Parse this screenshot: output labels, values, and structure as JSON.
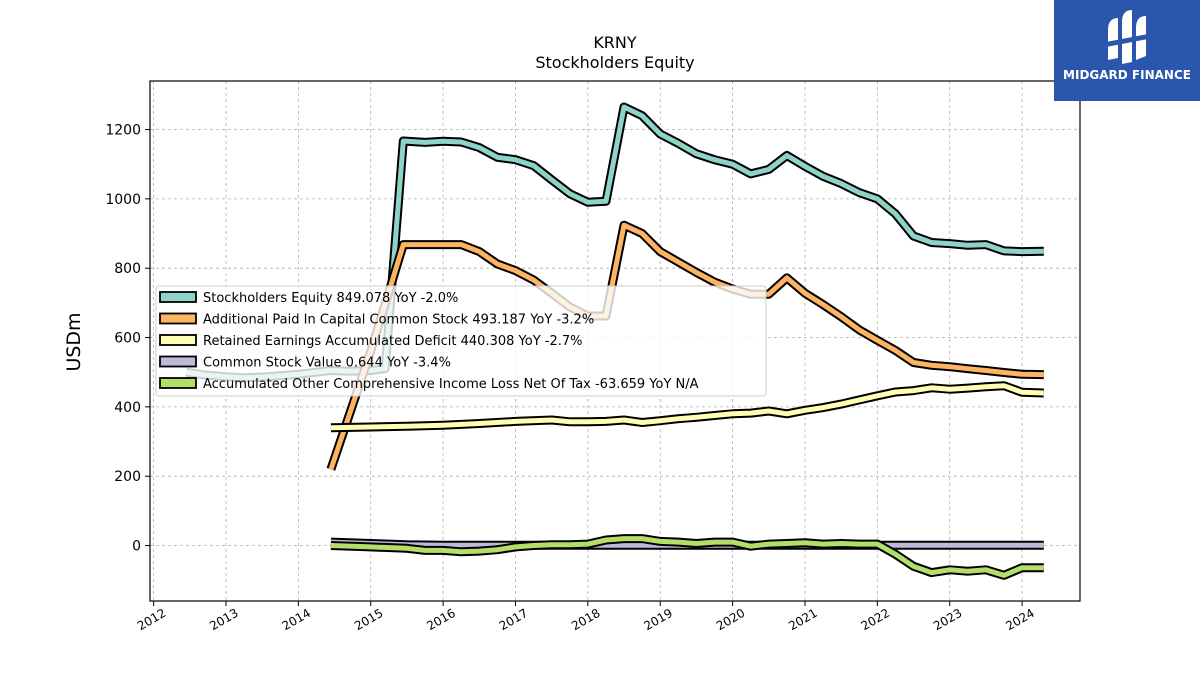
{
  "brand": {
    "name": "MIDGARD FINANCE",
    "bg": "#2a56ad"
  },
  "chart_data": {
    "type": "line",
    "title": "KRNY",
    "subtitle": "Stockholders  Equity",
    "ylabel": "USDm",
    "xlabel": "",
    "ylim": [
      -160,
      1340
    ],
    "xlim": [
      2011.95,
      2024.8
    ],
    "yticks": [
      0,
      200,
      400,
      600,
      800,
      1000,
      1200
    ],
    "xticks": [
      2012,
      2013,
      2014,
      2015,
      2016,
      2017,
      2018,
      2019,
      2020,
      2021,
      2022,
      2023,
      2024
    ],
    "grid": true,
    "legend_position": "center-left",
    "series": [
      {
        "name": "Stockholders Equity",
        "legend": "Stockholders Equity  849.078 YoY -2.0%",
        "color": "#8dd3c7",
        "points": [
          [
            2012.45,
            500
          ],
          [
            2012.7,
            492
          ],
          [
            2013.0,
            487
          ],
          [
            2013.25,
            484
          ],
          [
            2013.5,
            486
          ],
          [
            2013.75,
            490
          ],
          [
            2014.0,
            494
          ],
          [
            2014.25,
            500
          ],
          [
            2014.45,
            505
          ],
          [
            2014.7,
            503
          ],
          [
            2015.0,
            505
          ],
          [
            2015.2,
            510
          ],
          [
            2015.45,
            1167
          ],
          [
            2015.75,
            1163
          ],
          [
            2016.0,
            1166
          ],
          [
            2016.25,
            1164
          ],
          [
            2016.5,
            1148
          ],
          [
            2016.75,
            1120
          ],
          [
            2017.0,
            1113
          ],
          [
            2017.25,
            1096
          ],
          [
            2017.5,
            1055
          ],
          [
            2017.75,
            1015
          ],
          [
            2018.0,
            990
          ],
          [
            2018.25,
            993
          ],
          [
            2018.5,
            1265
          ],
          [
            2018.75,
            1240
          ],
          [
            2019.0,
            1187
          ],
          [
            2019.25,
            1160
          ],
          [
            2019.5,
            1130
          ],
          [
            2019.75,
            1113
          ],
          [
            2020.0,
            1100
          ],
          [
            2020.25,
            1072
          ],
          [
            2020.5,
            1085
          ],
          [
            2020.75,
            1125
          ],
          [
            2021.0,
            1094
          ],
          [
            2021.25,
            1065
          ],
          [
            2021.5,
            1044
          ],
          [
            2021.75,
            1018
          ],
          [
            2022.0,
            1000
          ],
          [
            2022.25,
            957
          ],
          [
            2022.5,
            893
          ],
          [
            2022.75,
            874
          ],
          [
            2023.0,
            871
          ],
          [
            2023.25,
            866
          ],
          [
            2023.5,
            868
          ],
          [
            2023.75,
            850
          ],
          [
            2024.0,
            848
          ],
          [
            2024.3,
            849
          ]
        ]
      },
      {
        "name": "Additional Paid In Capital Common Stock",
        "legend": "Additional Paid In Capital Common Stock  493.187 YoY -3.2%",
        "color": "#fdb462",
        "points": [
          [
            2014.45,
            220
          ],
          [
            2015.0,
            560
          ],
          [
            2015.45,
            868
          ],
          [
            2015.75,
            868
          ],
          [
            2016.0,
            868
          ],
          [
            2016.25,
            868
          ],
          [
            2016.5,
            848
          ],
          [
            2016.75,
            812
          ],
          [
            2017.0,
            793
          ],
          [
            2017.25,
            766
          ],
          [
            2017.5,
            728
          ],
          [
            2017.75,
            688
          ],
          [
            2018.0,
            662
          ],
          [
            2018.25,
            662
          ],
          [
            2018.5,
            924
          ],
          [
            2018.75,
            900
          ],
          [
            2019.0,
            848
          ],
          [
            2019.25,
            818
          ],
          [
            2019.5,
            788
          ],
          [
            2019.75,
            760
          ],
          [
            2020.0,
            740
          ],
          [
            2020.25,
            725
          ],
          [
            2020.5,
            725
          ],
          [
            2020.75,
            772
          ],
          [
            2021.0,
            728
          ],
          [
            2021.25,
            695
          ],
          [
            2021.5,
            660
          ],
          [
            2021.75,
            622
          ],
          [
            2022.0,
            592
          ],
          [
            2022.25,
            563
          ],
          [
            2022.5,
            528
          ],
          [
            2022.75,
            520
          ],
          [
            2023.0,
            516
          ],
          [
            2023.25,
            510
          ],
          [
            2023.5,
            505
          ],
          [
            2023.75,
            499
          ],
          [
            2024.0,
            494
          ],
          [
            2024.3,
            493
          ]
        ]
      },
      {
        "name": "Retained Earnings Accumulated Deficit",
        "legend": "Retained Earnings Accumulated Deficit  440.308 YoY -2.7%",
        "color": "#ffffb3",
        "points": [
          [
            2014.45,
            340
          ],
          [
            2015.0,
            342
          ],
          [
            2015.5,
            344
          ],
          [
            2016.0,
            347
          ],
          [
            2016.5,
            352
          ],
          [
            2017.0,
            358
          ],
          [
            2017.5,
            362
          ],
          [
            2017.75,
            357
          ],
          [
            2018.0,
            357
          ],
          [
            2018.25,
            358
          ],
          [
            2018.5,
            362
          ],
          [
            2018.75,
            355
          ],
          [
            2019.0,
            360
          ],
          [
            2019.25,
            366
          ],
          [
            2019.5,
            370
          ],
          [
            2019.75,
            375
          ],
          [
            2020.0,
            380
          ],
          [
            2020.25,
            382
          ],
          [
            2020.5,
            388
          ],
          [
            2020.75,
            380
          ],
          [
            2021.0,
            390
          ],
          [
            2021.25,
            398
          ],
          [
            2021.5,
            408
          ],
          [
            2021.75,
            420
          ],
          [
            2022.0,
            432
          ],
          [
            2022.25,
            443
          ],
          [
            2022.5,
            447
          ],
          [
            2022.75,
            455
          ],
          [
            2023.0,
            451
          ],
          [
            2023.25,
            454
          ],
          [
            2023.5,
            458
          ],
          [
            2023.75,
            461
          ],
          [
            2024.0,
            442
          ],
          [
            2024.3,
            440
          ]
        ]
      },
      {
        "name": "Common Stock Value",
        "legend": "Common Stock Value  0.644 YoY -3.4%",
        "color": "#bebada",
        "points": [
          [
            2014.45,
            10
          ],
          [
            2015.0,
            6
          ],
          [
            2015.5,
            2
          ],
          [
            2016.0,
            1
          ],
          [
            2017.0,
            1
          ],
          [
            2018.0,
            1
          ],
          [
            2019.0,
            1
          ],
          [
            2020.0,
            1
          ],
          [
            2021.0,
            1
          ],
          [
            2022.0,
            1
          ],
          [
            2023.0,
            1
          ],
          [
            2024.0,
            1
          ],
          [
            2024.3,
            1
          ]
        ]
      },
      {
        "name": "Accumulated Other Comprehensive Income Loss Net Of Tax",
        "legend": "Accumulated Other Comprehensive Income Loss Net Of Tax  -63.659 YoY N/A",
        "color": "#b3de69",
        "points": [
          [
            2014.45,
            0
          ],
          [
            2015.0,
            -4
          ],
          [
            2015.5,
            -8
          ],
          [
            2015.75,
            -14
          ],
          [
            2016.0,
            -14
          ],
          [
            2016.25,
            -18
          ],
          [
            2016.5,
            -16
          ],
          [
            2016.75,
            -12
          ],
          [
            2017.0,
            -4
          ],
          [
            2017.25,
            0
          ],
          [
            2017.5,
            2
          ],
          [
            2017.75,
            2
          ],
          [
            2018.0,
            4
          ],
          [
            2018.25,
            16
          ],
          [
            2018.5,
            20
          ],
          [
            2018.75,
            20
          ],
          [
            2019.0,
            12
          ],
          [
            2019.25,
            10
          ],
          [
            2019.5,
            6
          ],
          [
            2019.75,
            10
          ],
          [
            2020.0,
            10
          ],
          [
            2020.25,
            -2
          ],
          [
            2020.5,
            4
          ],
          [
            2020.75,
            6
          ],
          [
            2021.0,
            8
          ],
          [
            2021.25,
            4
          ],
          [
            2021.5,
            6
          ],
          [
            2021.75,
            4
          ],
          [
            2022.0,
            4
          ],
          [
            2022.25,
            -25
          ],
          [
            2022.5,
            -60
          ],
          [
            2022.75,
            -78
          ],
          [
            2023.0,
            -70
          ],
          [
            2023.25,
            -74
          ],
          [
            2023.5,
            -70
          ],
          [
            2023.75,
            -86
          ],
          [
            2024.0,
            -64
          ],
          [
            2024.3,
            -64
          ]
        ]
      }
    ]
  }
}
